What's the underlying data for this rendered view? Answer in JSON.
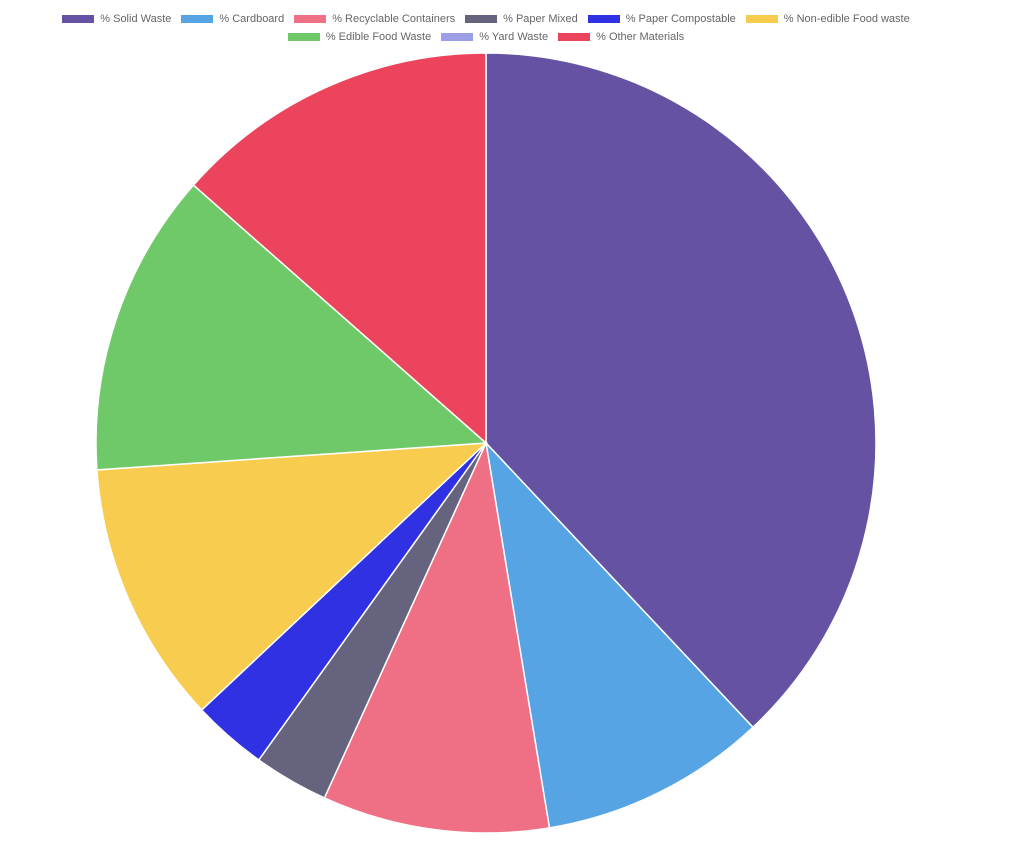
{
  "chart_data": {
    "type": "pie",
    "title": "",
    "legend_position": "top",
    "legend_rows": [
      [
        0,
        1,
        2,
        3,
        4,
        5
      ],
      [
        6,
        7,
        8
      ]
    ],
    "slices": [
      {
        "label": "% Solid Waste",
        "value": 38.0,
        "color": "#6552a2"
      },
      {
        "label": "% Cardboard",
        "value": 9.4,
        "color": "#57a4e5"
      },
      {
        "label": "% Recyclable Containers",
        "value": 9.4,
        "color": "#ef6f85"
      },
      {
        "label": "% Paper Mixed",
        "value": 3.1,
        "color": "#65637d"
      },
      {
        "label": "% Paper Compostable",
        "value": 3.1,
        "color": "#2f31e3"
      },
      {
        "label": "% Non-edible Food waste",
        "value": 10.9,
        "color": "#f7cc4f"
      },
      {
        "label": "% Edible Food Waste",
        "value": 12.6,
        "color": "#6fc968"
      },
      {
        "label": "% Yard Waste",
        "value": 0,
        "color": "#9c9ee6"
      },
      {
        "label": "% Other Materials",
        "value": 13.5,
        "color": "#eb445c"
      }
    ]
  }
}
